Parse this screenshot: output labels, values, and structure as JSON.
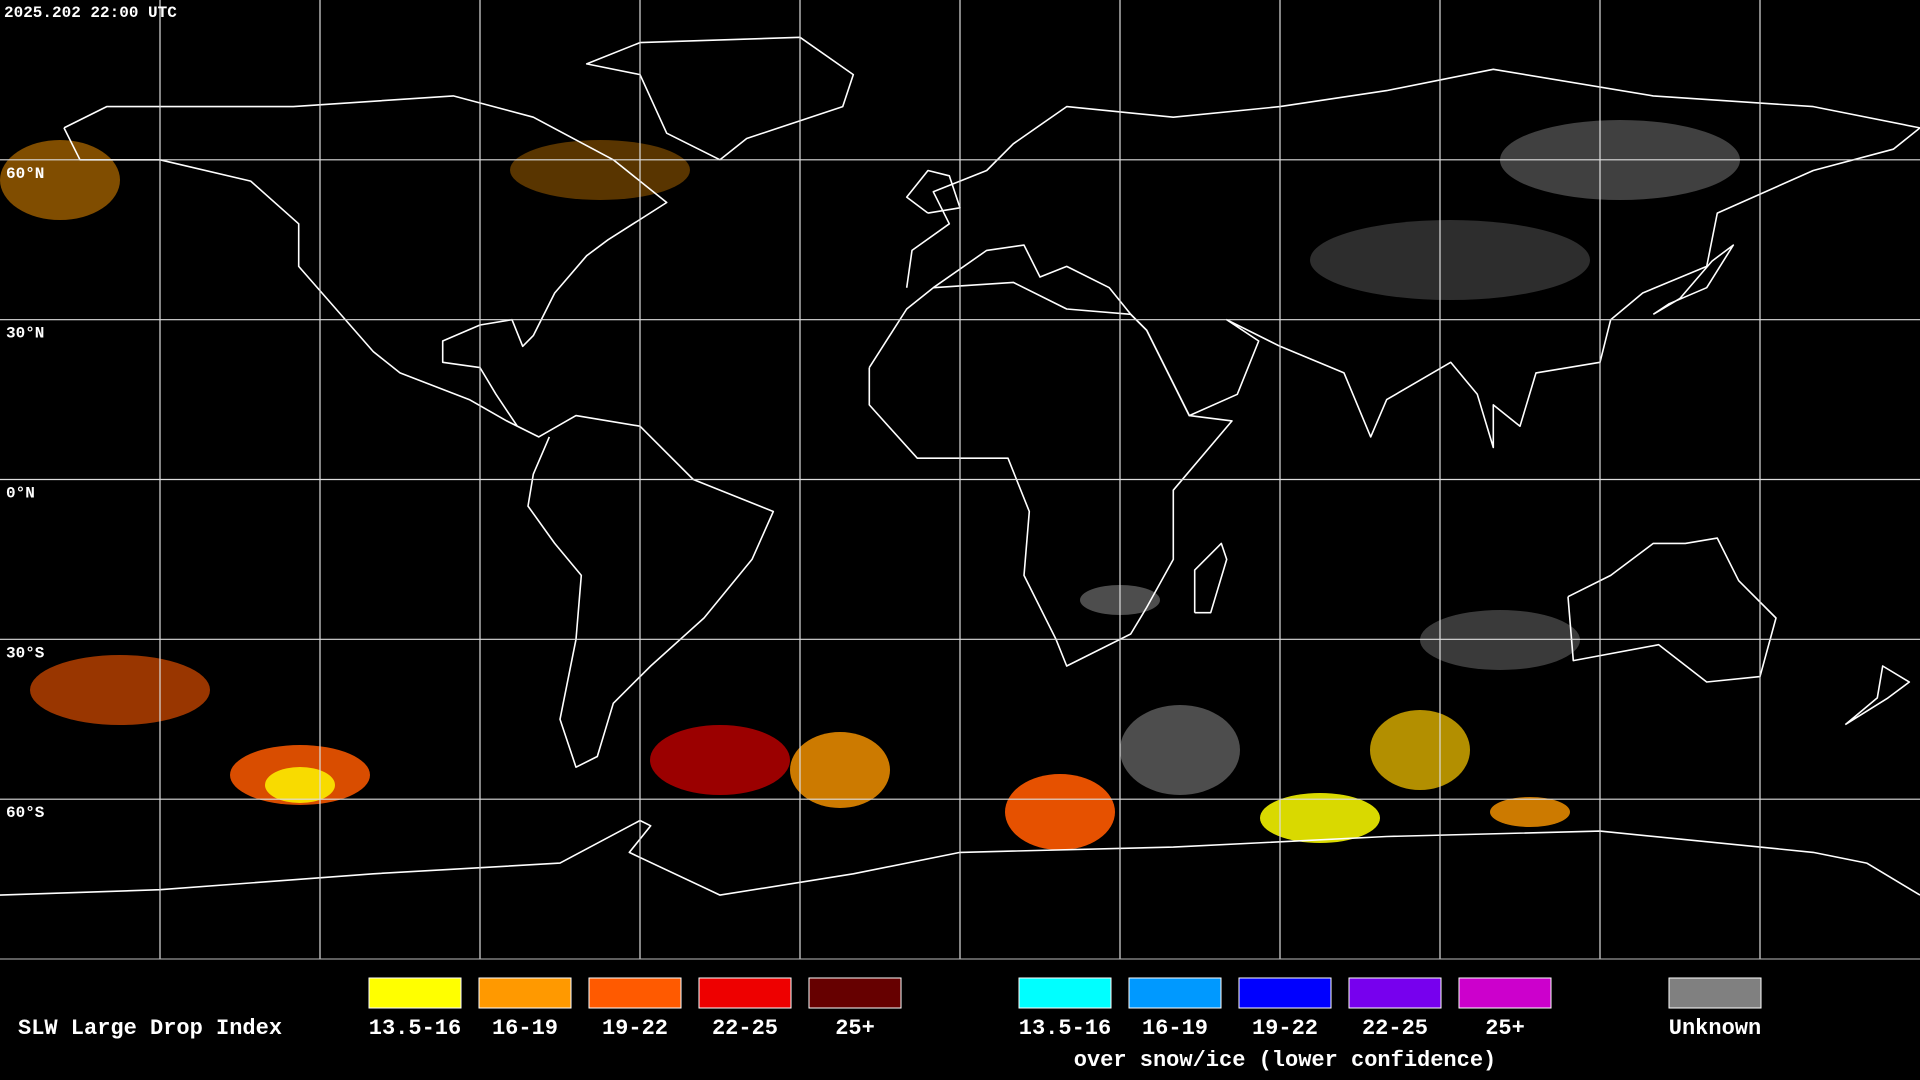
{
  "timestamp": "2025.202 22:00 UTC",
  "latitude_labels": [
    "60°N",
    "30°N",
    "0°N",
    "30°S",
    "60°S"
  ],
  "legend": {
    "title": "SLW Large Drop Index",
    "groups": [
      {
        "items": [
          {
            "label": "13.5-16",
            "color": "#ffff00"
          },
          {
            "label": "16-19",
            "color": "#ff9900"
          },
          {
            "label": "19-22",
            "color": "#ff5a00"
          },
          {
            "label": "22-25",
            "color": "#ee0000"
          },
          {
            "label": "25+",
            "color": "#660000"
          }
        ]
      },
      {
        "items": [
          {
            "label": "13.5-16",
            "color": "#00ffff"
          },
          {
            "label": "16-19",
            "color": "#0099ff"
          },
          {
            "label": "19-22",
            "color": "#0000ff"
          },
          {
            "label": "22-25",
            "color": "#7700ee"
          },
          {
            "label": "25+",
            "color": "#cc00cc"
          }
        ],
        "caption": "over snow/ice (lower confidence)"
      },
      {
        "items": [
          {
            "label": "Unknown",
            "color": "#808080"
          }
        ]
      }
    ]
  }
}
